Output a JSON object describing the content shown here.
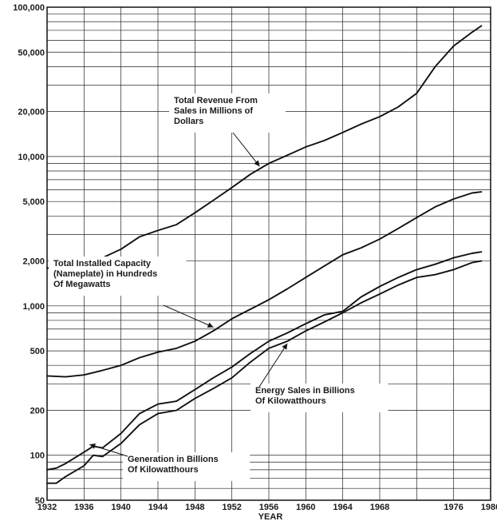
{
  "chart_data": {
    "type": "line",
    "title": "",
    "xlabel": "YEAR",
    "ylabel": "",
    "y_scale": "log",
    "xlim": [
      1932,
      1980
    ],
    "ylim": [
      50,
      100000
    ],
    "grid": true,
    "legend": "none",
    "x_tick_labels": [
      "1932",
      "1936",
      "1940",
      "1944",
      "1948",
      "1952",
      "1956",
      "1960",
      "1964",
      "1968",
      "1976",
      "1980"
    ],
    "y_tick_labels": [
      "50",
      "100",
      "200",
      "500",
      "1,000",
      "2,000",
      "5,000",
      "10,000",
      "20,000",
      "50,000",
      "100,000"
    ],
    "annotations": [
      {
        "id": "revenue",
        "lines": [
          "Total Revenue From",
          "Sales in Millions of",
          "Dollars"
        ]
      },
      {
        "id": "capacity",
        "lines": [
          "Total Installed Capacity",
          "(Nameplate) in Hundreds",
          "Of Megawatts"
        ]
      },
      {
        "id": "energy",
        "lines": [
          "Energy Sales in Billions",
          "Of Kilowatthours"
        ]
      },
      {
        "id": "generation",
        "lines": [
          "Generation in Billions",
          "Of Kilowatthours"
        ]
      }
    ],
    "series": [
      {
        "id": "revenue",
        "x": [
          1932,
          1933,
          1934,
          1936,
          1938,
          1940,
          1942,
          1944,
          1946,
          1948,
          1950,
          1952,
          1954,
          1956,
          1958,
          1960,
          1962,
          1964,
          1966,
          1968,
          1970,
          1972,
          1974,
          1976,
          1978,
          1979
        ],
        "values": [
          1800,
          1720,
          1900,
          2000,
          2100,
          2400,
          2900,
          3200,
          3500,
          4200,
          5100,
          6200,
          7600,
          9000,
          10200,
          11600,
          12800,
          14500,
          16500,
          18500,
          21500,
          26500,
          40000,
          55000,
          68000,
          75000
        ]
      },
      {
        "id": "capacity",
        "x": [
          1932,
          1934,
          1936,
          1938,
          1940,
          1942,
          1944,
          1946,
          1948,
          1950,
          1952,
          1954,
          1956,
          1958,
          1960,
          1962,
          1964,
          1966,
          1968,
          1970,
          1972,
          1974,
          1976,
          1978,
          1979
        ],
        "values": [
          340,
          335,
          345,
          370,
          400,
          450,
          490,
          520,
          580,
          680,
          820,
          950,
          1100,
          1300,
          1550,
          1850,
          2200,
          2450,
          2800,
          3300,
          3900,
          4600,
          5200,
          5700,
          5800
        ]
      },
      {
        "id": "energy",
        "x": [
          1932,
          1933,
          1934,
          1936,
          1937,
          1938,
          1940,
          1942,
          1944,
          1946,
          1948,
          1950,
          1952,
          1954,
          1956,
          1958,
          1960,
          1962,
          1964,
          1966,
          1968,
          1970,
          1972,
          1974,
          1976,
          1978,
          1979
        ],
        "values": [
          65,
          65,
          72,
          85,
          100,
          98,
          120,
          160,
          190,
          200,
          240,
          280,
          330,
          420,
          520,
          580,
          680,
          780,
          900,
          1050,
          1200,
          1380,
          1550,
          1620,
          1750,
          1950,
          2000
        ]
      },
      {
        "id": "generation",
        "x": [
          1932,
          1933,
          1934,
          1936,
          1937,
          1938,
          1940,
          1942,
          1944,
          1946,
          1948,
          1950,
          1952,
          1954,
          1956,
          1958,
          1960,
          1962,
          1964,
          1966,
          1968,
          1970,
          1972,
          1974,
          1976,
          1978,
          1979
        ],
        "values": [
          80,
          82,
          88,
          105,
          115,
          112,
          140,
          190,
          220,
          230,
          275,
          330,
          390,
          480,
          580,
          660,
          760,
          870,
          920,
          1150,
          1350,
          1550,
          1750,
          1900,
          2100,
          2250,
          2300
        ]
      }
    ]
  }
}
